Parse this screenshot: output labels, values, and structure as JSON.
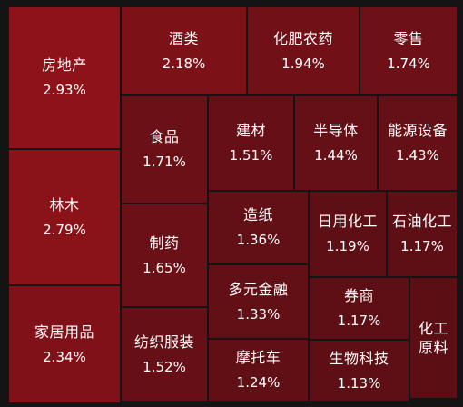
{
  "chart_data": {
    "type": "treemap",
    "unit": "%",
    "items": [
      {
        "name": "房地产",
        "value": 2.93,
        "label": "2.93%",
        "color": "#8e1219"
      },
      {
        "name": "林木",
        "value": 2.79,
        "label": "2.79%",
        "color": "#8a1219"
      },
      {
        "name": "家居用品",
        "value": 2.34,
        "label": "2.34%",
        "color": "#801118"
      },
      {
        "name": "酒类",
        "value": 2.18,
        "label": "2.18%",
        "color": "#7d1118"
      },
      {
        "name": "化肥农药",
        "value": 1.94,
        "label": "1.94%",
        "color": "#721017"
      },
      {
        "name": "零售",
        "value": 1.74,
        "label": "1.74%",
        "color": "#6d1017"
      },
      {
        "name": "食品",
        "value": 1.71,
        "label": "1.71%",
        "color": "#6c1017"
      },
      {
        "name": "建材",
        "value": 1.51,
        "label": "1.51%",
        "color": "#670f16"
      },
      {
        "name": "半导体",
        "value": 1.44,
        "label": "1.44%",
        "color": "#650f16"
      },
      {
        "name": "能源设备",
        "value": 1.43,
        "label": "1.43%",
        "color": "#650f16"
      },
      {
        "name": "制药",
        "value": 1.65,
        "label": "1.65%",
        "color": "#6a1016"
      },
      {
        "name": "造纸",
        "value": 1.36,
        "label": "1.36%",
        "color": "#630f16"
      },
      {
        "name": "日用化工",
        "value": 1.19,
        "label": "1.19%",
        "color": "#5e0f15"
      },
      {
        "name": "石油化工",
        "value": 1.17,
        "label": "1.17%",
        "color": "#5e0f15"
      },
      {
        "name": "多元金融",
        "value": 1.33,
        "label": "1.33%",
        "color": "#620f16"
      },
      {
        "name": "券商",
        "value": 1.17,
        "label": "1.17%",
        "color": "#5e0f15"
      },
      {
        "name": "化工原料",
        "value": null,
        "label": "",
        "color": "#5c0e15"
      },
      {
        "name": "纺织服装",
        "value": 1.52,
        "label": "1.52%",
        "color": "#670f16"
      },
      {
        "name": "摩托车",
        "value": 1.24,
        "label": "1.24%",
        "color": "#600f15"
      },
      {
        "name": "生物科技",
        "value": 1.13,
        "label": "1.13%",
        "color": "#5d0f15"
      }
    ]
  }
}
